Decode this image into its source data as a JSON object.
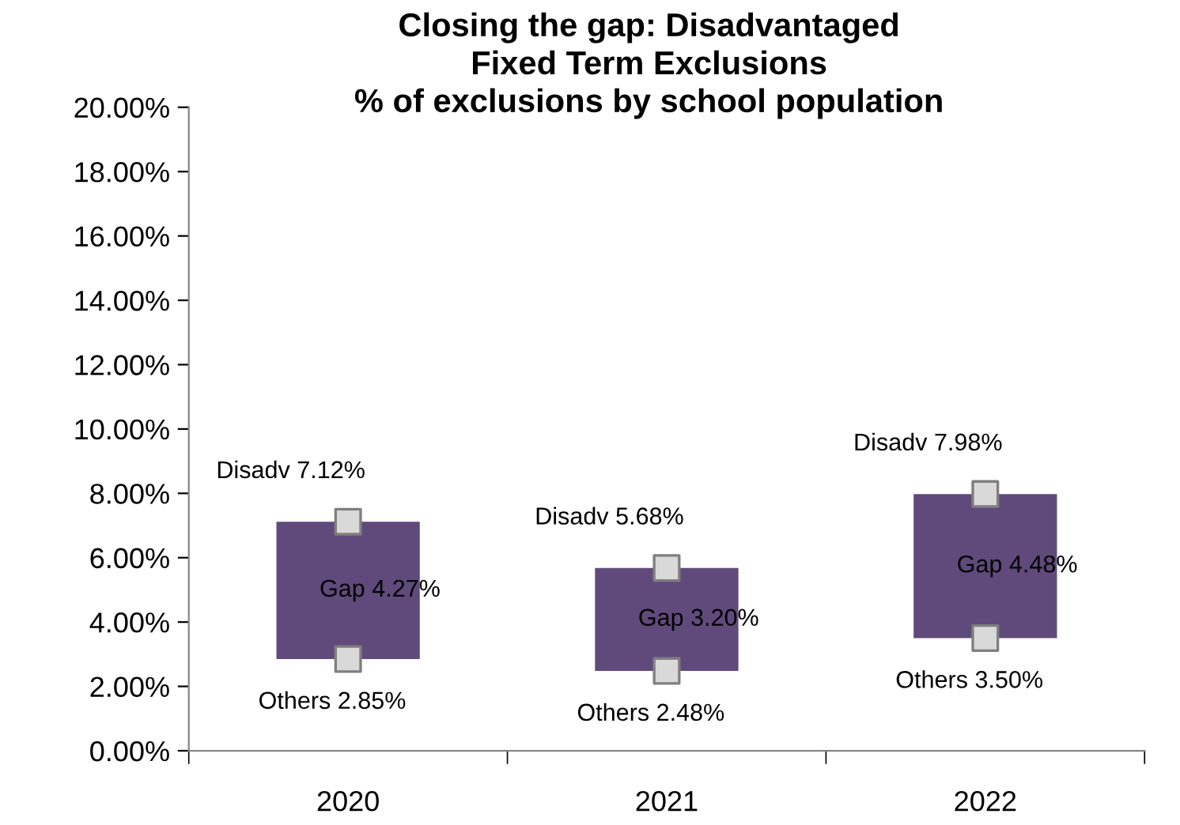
{
  "chart_data": {
    "type": "bar",
    "title": "Closing the gap: Disadvantaged\nFixed Term Exclusions\n% of exclusions by school population",
    "categories": [
      "2020",
      "2021",
      "2022"
    ],
    "series": [
      {
        "color": "#604a7b",
        "base": [
          2.85,
          2.48,
          3.5
        ],
        "values": [
          4.27,
          3.2,
          4.48
        ],
        "value_labels": [
          "Gap 4.27%",
          "Gap 3.20%",
          "Gap 4.48%"
        ]
      },
      {
        "type": "scatter",
        "color": "#d9d9d9",
        "values": [
          7.12,
          5.68,
          7.98
        ],
        "value_labels": [
          "Disadv 7.12%",
          "Disadv 5.68%",
          "Disadv 7.98%"
        ]
      },
      {
        "type": "scatter",
        "color": "#d9d9d9",
        "values": [
          2.85,
          2.48,
          3.5
        ],
        "value_labels": [
          "Others 2.85%",
          "Others 2.48%",
          "Others 3.50%"
        ]
      }
    ],
    "ylim": [
      0,
      20
    ],
    "yticks": [
      {
        "value": 0,
        "label": "0.00%"
      },
      {
        "value": 2,
        "label": "2.00%"
      },
      {
        "value": 4,
        "label": "4.00%"
      },
      {
        "value": 6,
        "label": "6.00%"
      },
      {
        "value": 8,
        "label": "8.00%"
      },
      {
        "value": 10,
        "label": "10.00%"
      },
      {
        "value": 12,
        "label": "12.00%"
      },
      {
        "value": 14,
        "label": "14.00%"
      },
      {
        "value": 16,
        "label": "16.00%"
      },
      {
        "value": 18,
        "label": "18.00%"
      },
      {
        "value": 20,
        "label": "20.00%"
      }
    ],
    "marker": "square",
    "grid": false,
    "legend": false
  }
}
